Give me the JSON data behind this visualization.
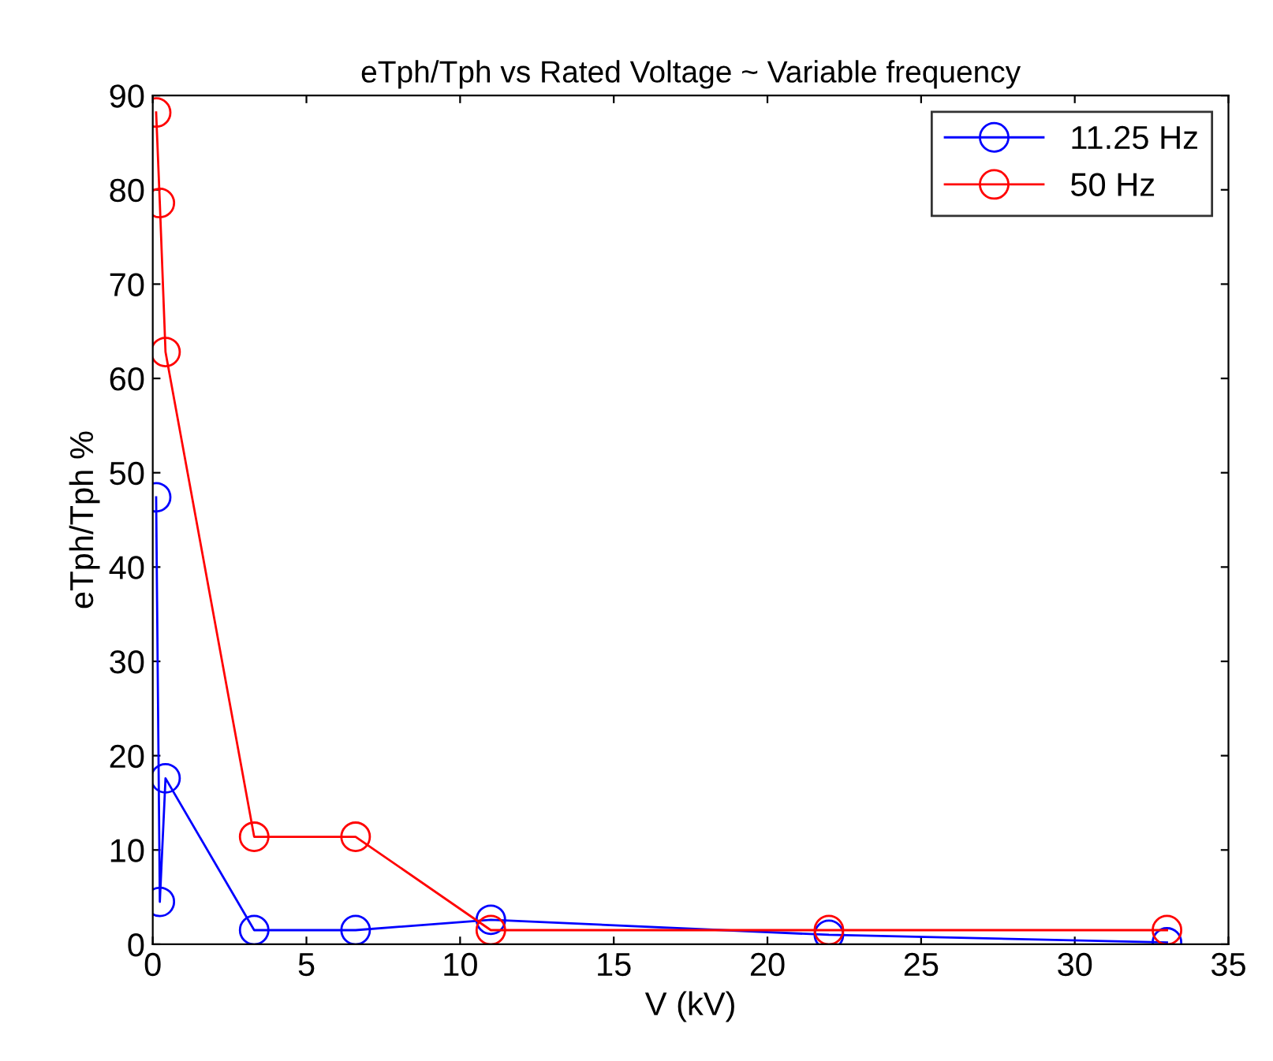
{
  "chart_data": {
    "type": "line",
    "title": "eTph/Tph vs Rated Voltage ~ Variable frequency",
    "xlabel": "V (kV)",
    "ylabel": "eTph/Tph %",
    "x": [
      0.11,
      0.23,
      0.415,
      3.3,
      6.6,
      11,
      22,
      33
    ],
    "series": [
      {
        "name": "11.25 Hz",
        "color": "#0000ff",
        "values": [
          47.4,
          4.5,
          17.6,
          1.5,
          1.5,
          2.6,
          1.0,
          0.2
        ]
      },
      {
        "name": "50 Hz",
        "color": "#ff0000",
        "values": [
          88.2,
          78.6,
          62.8,
          11.4,
          11.4,
          1.5,
          1.5,
          1.5
        ]
      }
    ],
    "xlim": [
      0,
      35
    ],
    "xticks": [
      0,
      5,
      10,
      15,
      20,
      25,
      30,
      35
    ],
    "ylim": [
      0,
      90
    ],
    "yticks": [
      0,
      10,
      20,
      30,
      40,
      50,
      60,
      70,
      80,
      90
    ],
    "marker": "circle",
    "line_style": "solid",
    "grid": false,
    "legend": "top right"
  }
}
